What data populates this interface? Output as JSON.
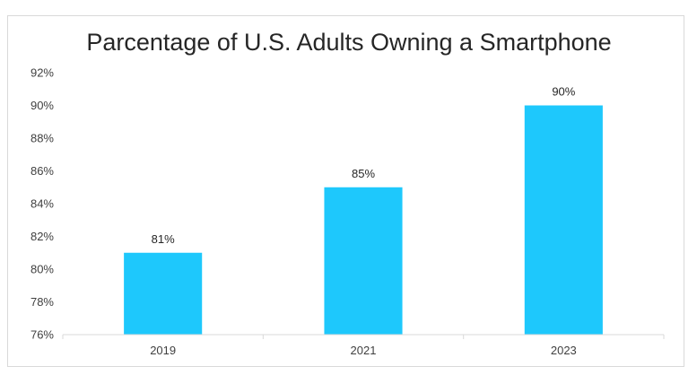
{
  "chart_data": {
    "type": "bar",
    "title": "Parcentage of U.S. Adults Owning a Smartphone",
    "categories": [
      "2019",
      "2021",
      "2023"
    ],
    "values": [
      81,
      85,
      90
    ],
    "data_labels": [
      "81%",
      "85%",
      "90%"
    ],
    "ylim": [
      76,
      92
    ],
    "y_ticks": [
      76,
      78,
      80,
      82,
      84,
      86,
      88,
      90,
      92
    ],
    "y_tick_format": "%",
    "xlabel": "",
    "ylabel": "",
    "grid": false,
    "legend": "none",
    "bar_color": "#1ec8fc",
    "axis_color": "#d9d9d9",
    "text_color": "#404040"
  }
}
